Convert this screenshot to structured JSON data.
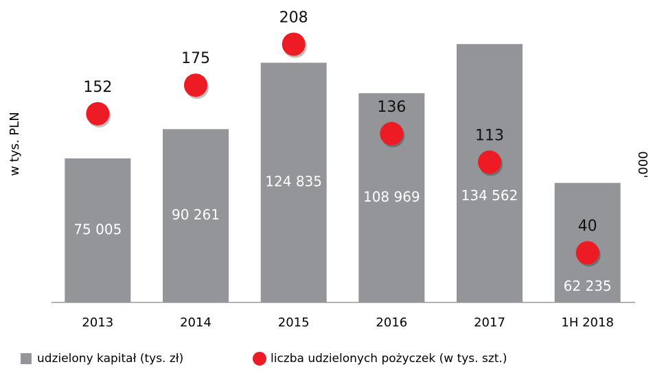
{
  "chart_data": {
    "type": "bar",
    "categories": [
      "2013",
      "2014",
      "2015",
      "2016",
      "2017",
      "1H 2018"
    ],
    "series": [
      {
        "name": "udzielony kapitał (tys. zł)",
        "color": "#939598",
        "type": "bar",
        "values": [
          75005,
          90261,
          124835,
          108969,
          134562,
          62235
        ],
        "value_labels": [
          "75 005",
          "90 261",
          "124 835",
          "108 969",
          "134 562",
          "62 235"
        ]
      },
      {
        "name": "liczba udzielonych pożyczek (w tys. szt.)",
        "color": "#ed1c24",
        "type": "scatter",
        "axis": "y2",
        "values": [
          152,
          175,
          208,
          136,
          113,
          40
        ]
      }
    ],
    "ylabel": "w tys. PLN",
    "y2label": "000'",
    "ylim": [
      0,
      150000
    ],
    "y2lim": [
      0,
      232
    ],
    "legend": "bottom"
  }
}
